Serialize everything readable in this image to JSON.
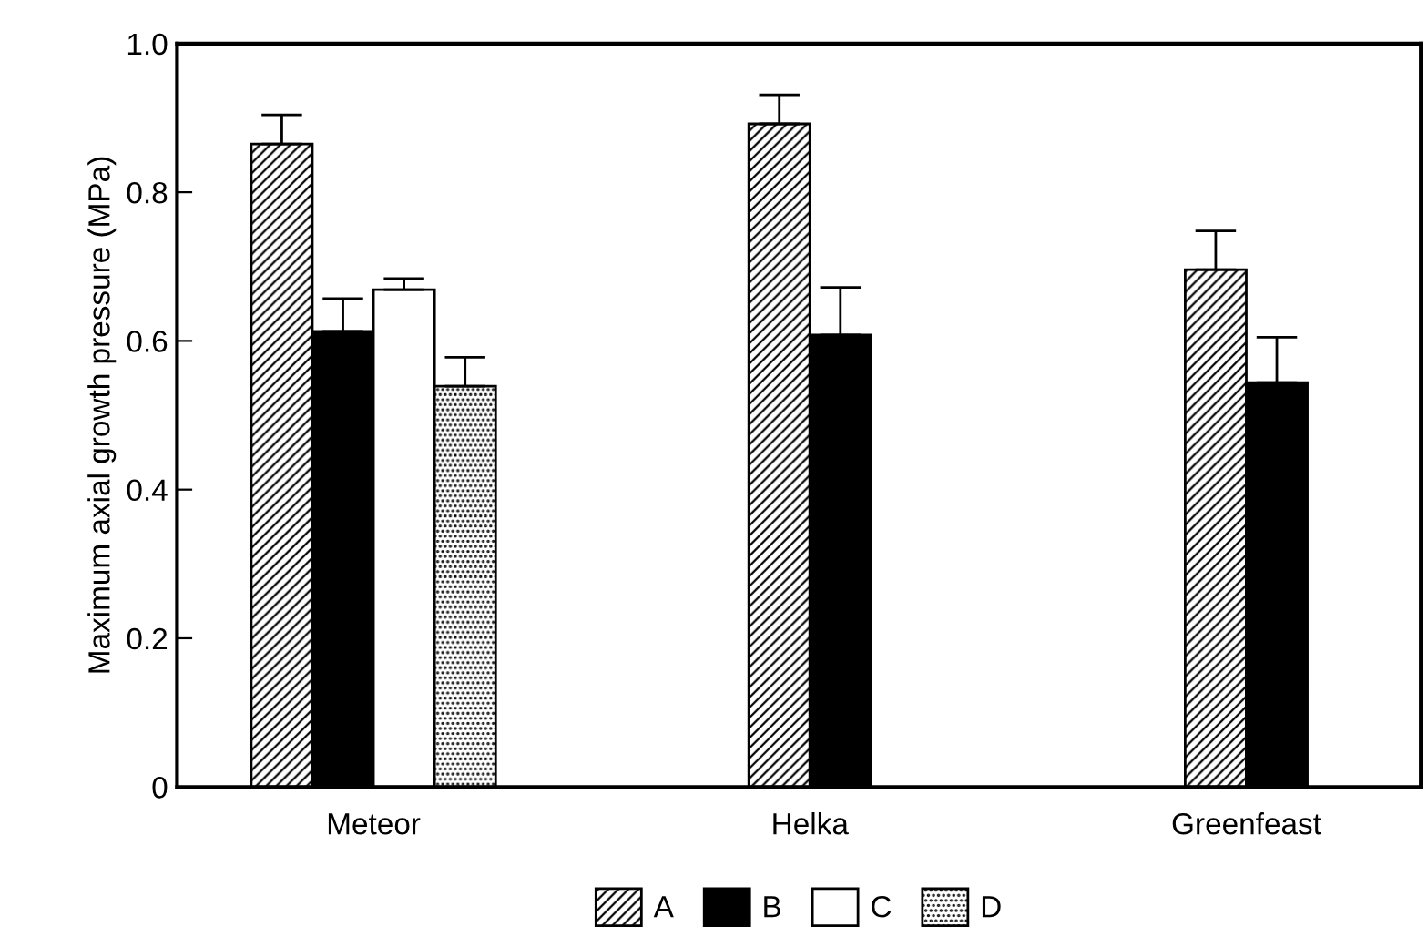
{
  "chart_data": {
    "type": "bar",
    "ylabel": "Maximum axial growth pressure (MPa)",
    "categories": [
      "Meteor",
      "Helka",
      "Greenfeast"
    ],
    "series": [
      {
        "name": "A",
        "color": "#000000",
        "values": [
          0.865,
          0.892,
          0.696
        ],
        "errors": [
          [
            0.865,
            0.904
          ],
          [
            0.892,
            0.931
          ],
          [
            0.696,
            0.748
          ]
        ]
      },
      {
        "name": "B",
        "color": "#000000",
        "values": [
          0.613,
          0.608,
          0.544
        ],
        "errors": [
          [
            0.613,
            0.657
          ],
          [
            0.608,
            0.672
          ],
          [
            0.544,
            0.605
          ]
        ]
      },
      {
        "name": "C",
        "color": "#ffffff",
        "values": [
          0.669,
          null,
          null
        ],
        "errors": [
          [
            0.669,
            0.684
          ],
          null,
          null
        ]
      },
      {
        "name": "D",
        "color": "#000000",
        "values": [
          0.539,
          null,
          null
        ],
        "errors": [
          [
            0.539,
            0.578
          ],
          null,
          null
        ]
      }
    ],
    "ylim": [
      0,
      1.0
    ],
    "yticks": [
      0,
      0.2,
      0.4,
      0.6,
      0.8,
      {
        "value": 1.0,
        "label": "1.0"
      }
    ],
    "grid": false,
    "legend": "bottom"
  }
}
